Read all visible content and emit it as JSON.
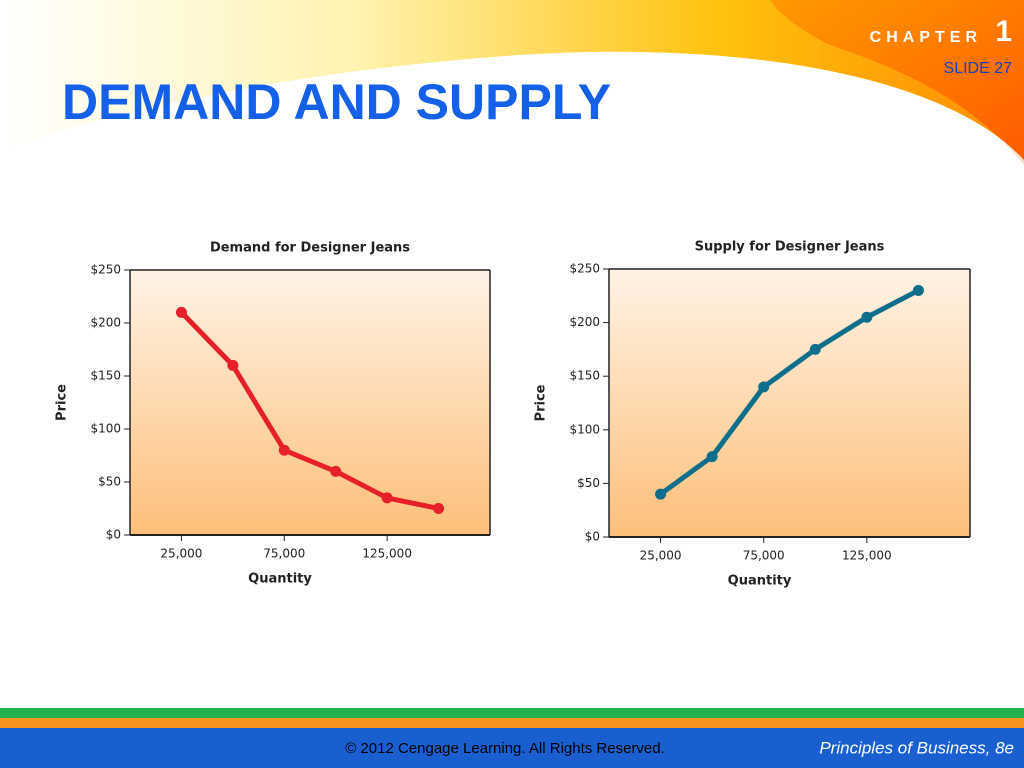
{
  "header": {
    "chapter_label": "CHAPTER",
    "chapter_number": "1",
    "slide": "SLIDE 27",
    "title": "DEMAND AND SUPPLY"
  },
  "footer": {
    "copyright": "© 2012 Cengage Learning. All Rights Reserved.",
    "book": "Principles of Business, 8e"
  },
  "chart_data": [
    {
      "type": "line",
      "title": "Demand for Designer Jeans",
      "x_label": "Quantity",
      "y_label": "Price",
      "x": [
        25000,
        50000,
        75000,
        100000,
        125000,
        150000
      ],
      "values": [
        210,
        160,
        80,
        60,
        35,
        25
      ],
      "color": "#e8202a",
      "xlim": [
        0,
        175000
      ],
      "xticks": [
        {
          "value": 25000,
          "label": "25,000"
        },
        {
          "value": 75000,
          "label": "75,000"
        },
        {
          "value": 125000,
          "label": "125,000"
        }
      ],
      "ylim": [
        0,
        250
      ],
      "yticks": [
        {
          "value": 0,
          "label": "$0"
        },
        {
          "value": 50,
          "label": "$50"
        },
        {
          "value": 100,
          "label": "$100"
        },
        {
          "value": 150,
          "label": "$150"
        },
        {
          "value": 200,
          "label": "$200"
        },
        {
          "value": 250,
          "label": "$250"
        }
      ]
    },
    {
      "type": "line",
      "title": "Supply for Designer Jeans",
      "x_label": "Quantity",
      "y_label": "Price",
      "x": [
        25000,
        50000,
        75000,
        100000,
        125000,
        150000
      ],
      "values": [
        40,
        75,
        140,
        175,
        205,
        230
      ],
      "color": "#0f6e8c",
      "xlim": [
        0,
        175000
      ],
      "xticks": [
        {
          "value": 25000,
          "label": "25,000"
        },
        {
          "value": 75000,
          "label": "75,000"
        },
        {
          "value": 125000,
          "label": "125,000"
        }
      ],
      "ylim": [
        0,
        250
      ],
      "yticks": [
        {
          "value": 0,
          "label": "$0"
        },
        {
          "value": 50,
          "label": "$50"
        },
        {
          "value": 100,
          "label": "$100"
        },
        {
          "value": 150,
          "label": "$150"
        },
        {
          "value": 200,
          "label": "$200"
        },
        {
          "value": 250,
          "label": "$250"
        }
      ]
    }
  ]
}
